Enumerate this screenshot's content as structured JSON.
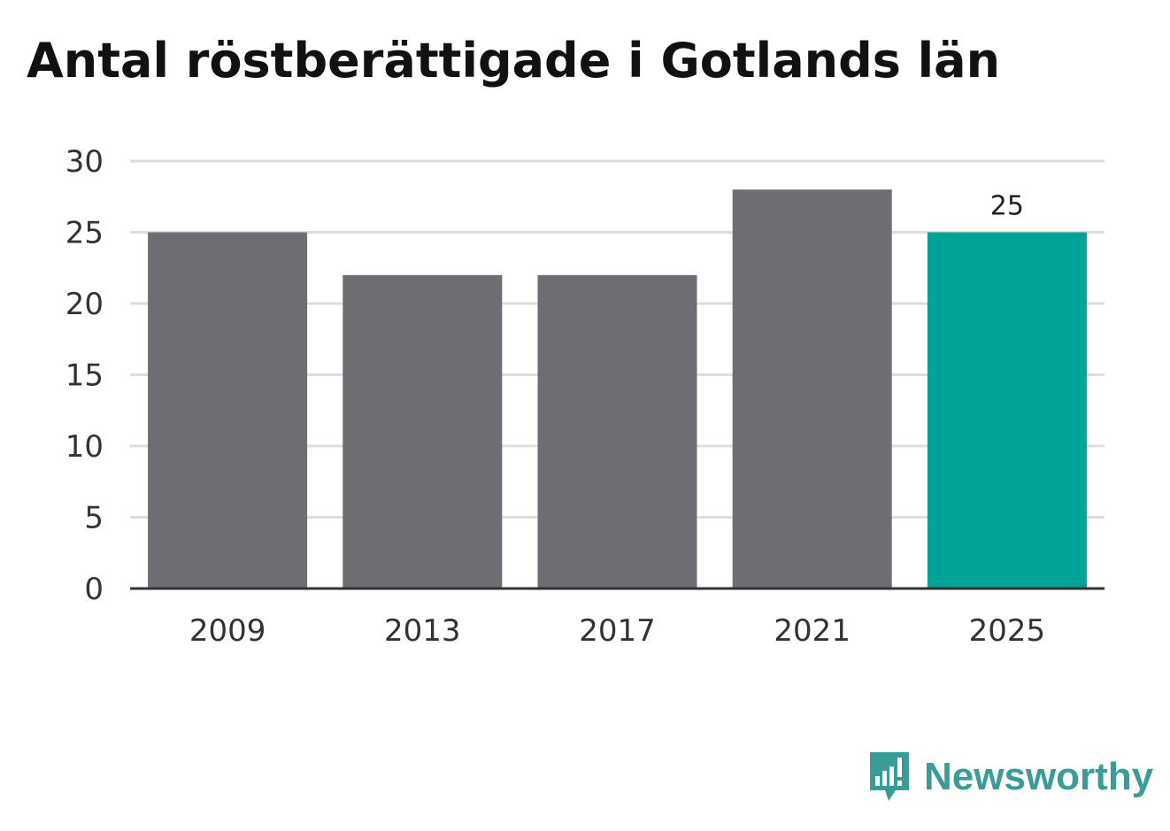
{
  "title": "Antal röstberättigade i Gotlands län",
  "chart_data": {
    "type": "bar",
    "categories": [
      "2009",
      "2013",
      "2017",
      "2021",
      "2025"
    ],
    "values": [
      25,
      22,
      22,
      28,
      25
    ],
    "ylim": [
      0,
      30
    ],
    "yticks": [
      0,
      5,
      10,
      15,
      20,
      25,
      30
    ],
    "grid": true,
    "bar_colors": [
      "#6e6d73",
      "#6e6d73",
      "#6e6d73",
      "#6e6d73",
      "#00a398"
    ],
    "highlight_index": 4,
    "data_labels": [
      "",
      "",
      "",
      "",
      "25"
    ]
  },
  "colors": {
    "bar": "#6e6d73",
    "highlight": "#00a398",
    "grid": "#dddddd",
    "axis": "#333333",
    "brand": "#3a9c96"
  },
  "logo": {
    "text": "Newsworthy",
    "icon": "newsworthy-logo-icon"
  }
}
